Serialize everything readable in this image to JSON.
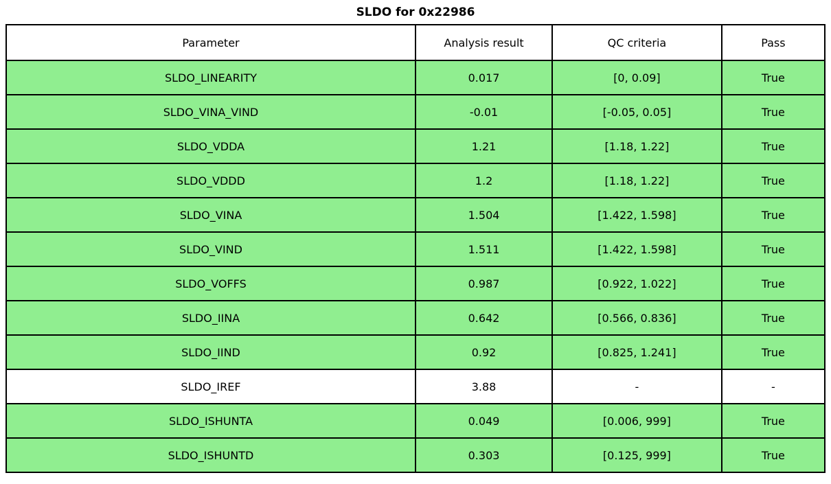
{
  "title": "SLDO for 0x22986",
  "colors": {
    "pass_row_green": "#90EE90",
    "plain_row_white": "#ffffff",
    "border": "#000000"
  },
  "chart_data": {
    "type": "table",
    "title": "SLDO for 0x22986",
    "headers": [
      "Parameter",
      "Analysis result",
      "QC criteria",
      "Pass"
    ],
    "rows": [
      {
        "parameter": "SLDO_LINEARITY",
        "result": "0.017",
        "criteria": "[0, 0.09]",
        "pass": "True",
        "highlight": true
      },
      {
        "parameter": "SLDO_VINA_VIND",
        "result": "-0.01",
        "criteria": "[-0.05, 0.05]",
        "pass": "True",
        "highlight": true
      },
      {
        "parameter": "SLDO_VDDA",
        "result": "1.21",
        "criteria": "[1.18, 1.22]",
        "pass": "True",
        "highlight": true
      },
      {
        "parameter": "SLDO_VDDD",
        "result": "1.2",
        "criteria": "[1.18, 1.22]",
        "pass": "True",
        "highlight": true
      },
      {
        "parameter": "SLDO_VINA",
        "result": "1.504",
        "criteria": "[1.422, 1.598]",
        "pass": "True",
        "highlight": true
      },
      {
        "parameter": "SLDO_VIND",
        "result": "1.511",
        "criteria": "[1.422, 1.598]",
        "pass": "True",
        "highlight": true
      },
      {
        "parameter": "SLDO_VOFFS",
        "result": "0.987",
        "criteria": "[0.922, 1.022]",
        "pass": "True",
        "highlight": true
      },
      {
        "parameter": "SLDO_IINA",
        "result": "0.642",
        "criteria": "[0.566, 0.836]",
        "pass": "True",
        "highlight": true
      },
      {
        "parameter": "SLDO_IIND",
        "result": "0.92",
        "criteria": "[0.825, 1.241]",
        "pass": "True",
        "highlight": true
      },
      {
        "parameter": "SLDO_IREF",
        "result": "3.88",
        "criteria": "-",
        "pass": "-",
        "highlight": false
      },
      {
        "parameter": "SLDO_ISHUNTA",
        "result": "0.049",
        "criteria": "[0.006, 999]",
        "pass": "True",
        "highlight": true
      },
      {
        "parameter": "SLDO_ISHUNTD",
        "result": "0.303",
        "criteria": "[0.125, 999]",
        "pass": "True",
        "highlight": true
      }
    ]
  }
}
